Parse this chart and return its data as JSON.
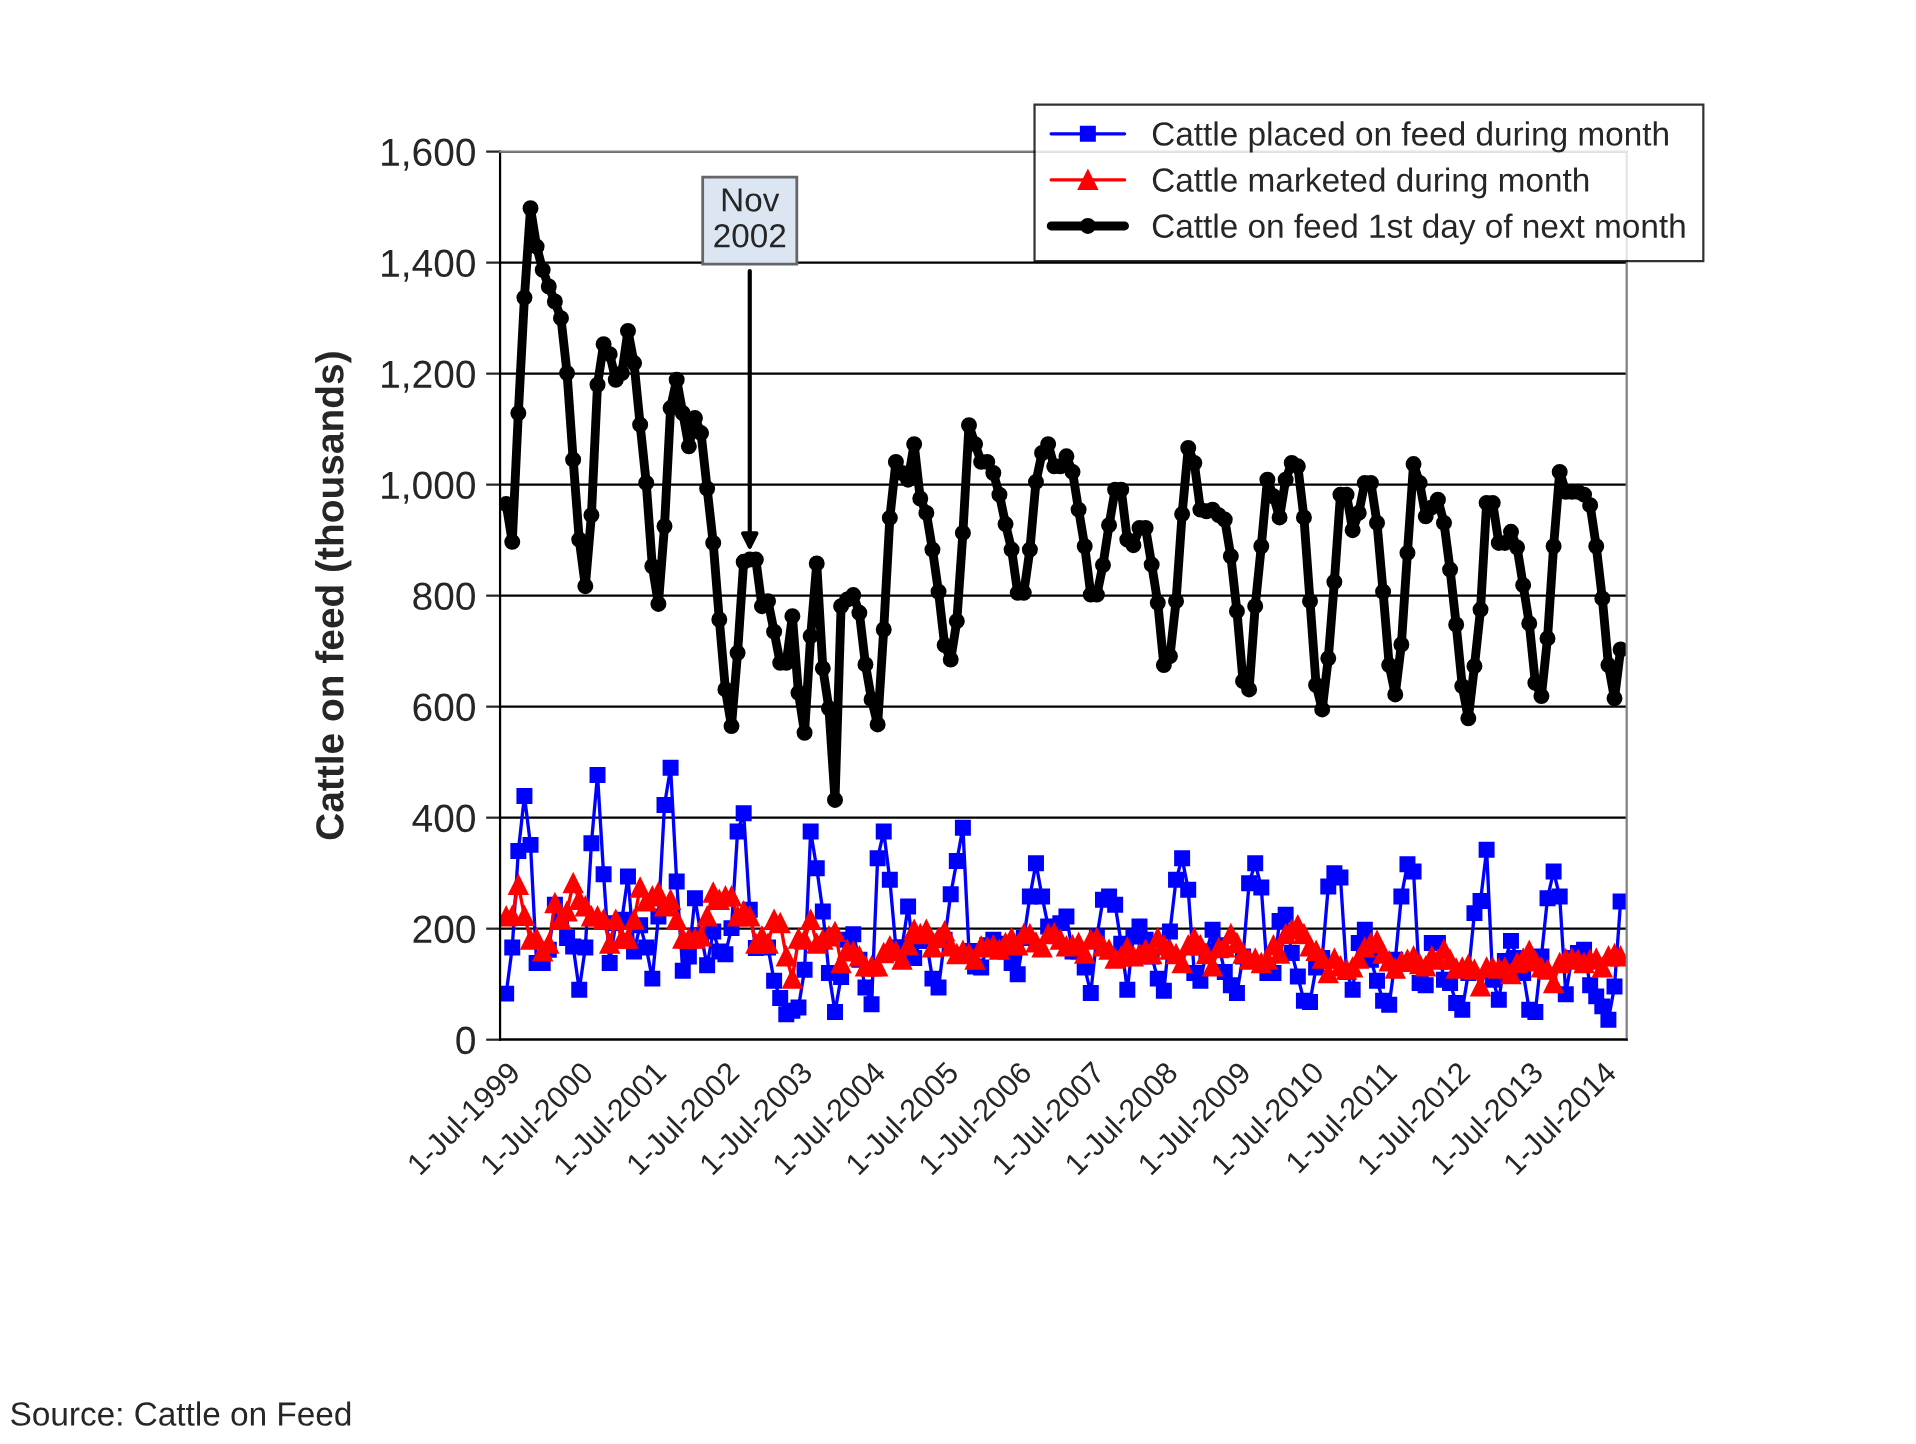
{
  "chart_data": {
    "type": "line",
    "ylabel": "Cattle on feed (thousands)",
    "x": [
      "1999-07",
      "1999-08",
      "1999-09",
      "1999-10",
      "1999-11",
      "1999-12",
      "2000-01",
      "2000-02",
      "2000-03",
      "2000-04",
      "2000-05",
      "2000-06",
      "2000-07",
      "2000-08",
      "2000-09",
      "2000-10",
      "2000-11",
      "2000-12",
      "2001-01",
      "2001-02",
      "2001-03",
      "2001-04",
      "2001-05",
      "2001-06",
      "2001-07",
      "2001-08",
      "2001-09",
      "2001-10",
      "2001-11",
      "2001-12",
      "2002-01",
      "2002-02",
      "2002-03",
      "2002-04",
      "2002-05",
      "2002-06",
      "2002-07",
      "2002-08",
      "2002-09",
      "2002-10",
      "2002-11",
      "2002-12",
      "2003-01",
      "2003-02",
      "2003-03",
      "2003-04",
      "2003-05",
      "2003-06",
      "2003-07",
      "2003-08",
      "2003-09",
      "2003-10",
      "2003-11",
      "2003-12",
      "2004-01",
      "2004-02",
      "2004-03",
      "2004-04",
      "2004-05",
      "2004-06",
      "2004-07",
      "2004-08",
      "2004-09",
      "2004-10",
      "2004-11",
      "2004-12",
      "2005-01",
      "2005-02",
      "2005-03",
      "2005-04",
      "2005-05",
      "2005-06",
      "2005-07",
      "2005-08",
      "2005-09",
      "2005-10",
      "2005-11",
      "2005-12",
      "2006-01",
      "2006-02",
      "2006-03",
      "2006-04",
      "2006-05",
      "2006-06",
      "2006-07",
      "2006-08",
      "2006-09",
      "2006-10",
      "2006-11",
      "2006-12",
      "2007-01",
      "2007-02",
      "2007-03",
      "2007-04",
      "2007-05",
      "2007-06",
      "2007-07",
      "2007-08",
      "2007-09",
      "2007-10",
      "2007-11",
      "2007-12",
      "2008-01",
      "2008-02",
      "2008-03",
      "2008-04",
      "2008-05",
      "2008-06",
      "2008-07",
      "2008-08",
      "2008-09",
      "2008-10",
      "2008-11",
      "2008-12",
      "2009-01",
      "2009-02",
      "2009-03",
      "2009-04",
      "2009-05",
      "2009-06",
      "2009-07",
      "2009-08",
      "2009-09",
      "2009-10",
      "2009-11",
      "2009-12",
      "2010-01",
      "2010-02",
      "2010-03",
      "2010-04",
      "2010-05",
      "2010-06",
      "2010-07",
      "2010-08",
      "2010-09",
      "2010-10",
      "2010-11",
      "2010-12",
      "2011-01",
      "2011-02",
      "2011-03",
      "2011-04",
      "2011-05",
      "2011-06",
      "2011-07",
      "2011-08",
      "2011-09",
      "2011-10",
      "2011-11",
      "2011-12",
      "2012-01",
      "2012-02",
      "2012-03",
      "2012-04",
      "2012-05",
      "2012-06",
      "2012-07",
      "2012-08",
      "2012-09",
      "2012-10",
      "2012-11",
      "2012-12",
      "2013-01",
      "2013-02",
      "2013-03",
      "2013-04",
      "2013-05",
      "2013-06",
      "2013-07",
      "2013-08",
      "2013-09",
      "2013-10",
      "2013-11",
      "2013-12",
      "2014-01",
      "2014-02",
      "2014-03",
      "2014-04",
      "2014-05",
      "2014-06",
      "2014-07",
      "2014-08",
      "2014-09",
      "2014-10"
    ],
    "series": [
      {
        "name": "Cattle placed on feed during month",
        "color": "#0000ff",
        "marker": "square",
        "values": [
          83,
          166,
          340,
          439,
          351,
          138,
          138,
          162,
          243,
          216,
          183,
          168,
          90,
          166,
          354,
          477,
          298,
          138,
          210,
          216,
          294,
          159,
          206,
          166,
          110,
          222,
          423,
          490,
          285,
          124,
          150,
          255,
          188,
          134,
          195,
          159,
          154,
          201,
          375,
          408,
          234,
          165,
          174,
          166,
          106,
          75,
          46,
          52,
          58,
          126,
          375,
          309,
          231,
          120,
          50,
          113,
          180,
          190,
          144,
          94,
          64,
          327,
          375,
          288,
          166,
          166,
          240,
          147,
          178,
          178,
          110,
          94,
          180,
          262,
          322,
          382,
          160,
          132,
          130,
          170,
          180,
          173,
          159,
          138,
          118,
          183,
          258,
          318,
          258,
          204,
          190,
          210,
          222,
          159,
          159,
          130,
          84,
          186,
          252,
          258,
          243,
          173,
          90,
          186,
          204,
          180,
          150,
          110,
          88,
          195,
          288,
          327,
          270,
          120,
          106,
          159,
          198,
          170,
          122,
          98,
          84,
          150,
          282,
          318,
          274,
          120,
          120,
          214,
          225,
          156,
          114,
          70,
          68,
          130,
          147,
          276,
          300,
          292,
          122,
          90,
          174,
          198,
          144,
          106,
          70,
          63,
          144,
          258,
          316,
          303,
          102,
          98,
          174,
          174,
          108,
          102,
          66,
          54,
          120,
          228,
          250,
          342,
          108,
          72,
          142,
          178,
          147,
          120,
          54,
          50,
          150,
          255,
          303,
          258,
          82,
          147,
          156,
          162,
          98,
          78,
          60,
          36,
          96,
          249
        ]
      },
      {
        "name": "Cattle marketed during month",
        "color": "#ff0000",
        "marker": "triangle",
        "values": [
          222,
          223,
          279,
          223,
          180,
          182,
          159,
          173,
          246,
          216,
          231,
          282,
          252,
          240,
          222,
          222,
          216,
          173,
          216,
          182,
          182,
          216,
          274,
          249,
          258,
          265,
          240,
          252,
          216,
          182,
          182,
          182,
          186,
          222,
          265,
          252,
          258,
          258,
          222,
          231,
          222,
          173,
          186,
          173,
          216,
          210,
          150,
          110,
          182,
          180,
          216,
          173,
          180,
          186,
          194,
          138,
          162,
          159,
          150,
          132,
          132,
          132,
          156,
          168,
          159,
          144,
          170,
          198,
          190,
          198,
          166,
          183,
          195,
          168,
          154,
          160,
          155,
          144,
          168,
          166,
          170,
          162,
          174,
          183,
          170,
          190,
          190,
          175,
          166,
          190,
          192,
          180,
          168,
          170,
          174,
          155,
          180,
          183,
          168,
          162,
          146,
          150,
          166,
          150,
          154,
          162,
          154,
          183,
          170,
          162,
          154,
          138,
          170,
          183,
          170,
          154,
          132,
          165,
          166,
          190,
          174,
          155,
          144,
          146,
          138,
          144,
          170,
          155,
          190,
          198,
          206,
          190,
          168,
          160,
          146,
          120,
          146,
          132,
          126,
          130,
          146,
          166,
          174,
          178,
          155,
          141,
          128,
          140,
          144,
          150,
          136,
          132,
          150,
          144,
          162,
          144,
          128,
          130,
          135,
          126,
          96,
          130,
          130,
          128,
          130,
          118,
          138,
          146,
          160,
          141,
          130,
          126,
          102,
          138,
          145,
          146,
          144,
          138,
          144,
          146,
          130,
          150,
          154,
          150
        ]
      },
      {
        "name": "Cattle on feed 1st day of next month",
        "color": "#000000",
        "marker": "circle",
        "values": [
          965,
          897,
          1129,
          1337,
          1498,
          1429,
          1387,
          1357,
          1330,
          1300,
          1201,
          1045,
          901,
          817,
          945,
          1180,
          1253,
          1235,
          1189,
          1201,
          1277,
          1219,
          1108,
          1003,
          853,
          785,
          925,
          1138,
          1189,
          1129,
          1069,
          1120,
          1093,
          993,
          895,
          757,
          631,
          565,
          697,
          861,
          865,
          865,
          781,
          790,
          735,
          679,
          679,
          763,
          625,
          553,
          727,
          858,
          669,
          597,
          432,
          781,
          793,
          801,
          769,
          676,
          613,
          568,
          739,
          940,
          1041,
          1021,
          1009,
          1073,
          975,
          949,
          883,
          807,
          711,
          685,
          754,
          913,
          1107,
          1073,
          1041,
          1041,
          1021,
          982,
          929,
          883,
          805,
          805,
          883,
          1005,
          1057,
          1073,
          1033,
          1033,
          1051,
          1023,
          955,
          889,
          802,
          802,
          855,
          927,
          991,
          991,
          901,
          891,
          922,
          922,
          856,
          787,
          675,
          691,
          790,
          947,
          1066,
          1039,
          955,
          952,
          955,
          945,
          937,
          871,
          772,
          646,
          631,
          781,
          889,
          1009,
          979,
          941,
          1009,
          1039,
          1033,
          941,
          790,
          639,
          595,
          687,
          825,
          982,
          982,
          918,
          949,
          1003,
          1003,
          931,
          807,
          675,
          622,
          712,
          877,
          1037,
          1003,
          943,
          959,
          973,
          931,
          847,
          748,
          637,
          579,
          673,
          775,
          967,
          967,
          895,
          895,
          915,
          887,
          819,
          750,
          643,
          619,
          723,
          889,
          1023,
          987,
          987,
          987,
          982,
          963,
          889,
          795,
          675,
          615,
          703
        ]
      }
    ],
    "xlim": [
      "1999-06",
      "2014-11"
    ],
    "xticks": [
      {
        "value": "1999-07",
        "label": "1-Jul-1999"
      },
      {
        "value": "2000-07",
        "label": "1-Jul-2000"
      },
      {
        "value": "2001-07",
        "label": "1-Jul-2001"
      },
      {
        "value": "2002-07",
        "label": "1-Jul-2002"
      },
      {
        "value": "2003-07",
        "label": "1-Jul-2003"
      },
      {
        "value": "2004-07",
        "label": "1-Jul-2004"
      },
      {
        "value": "2005-07",
        "label": "1-Jul-2005"
      },
      {
        "value": "2006-07",
        "label": "1-Jul-2006"
      },
      {
        "value": "2007-07",
        "label": "1-Jul-2007"
      },
      {
        "value": "2008-07",
        "label": "1-Jul-2008"
      },
      {
        "value": "2009-07",
        "label": "1-Jul-2009"
      },
      {
        "value": "2010-07",
        "label": "1-Jul-2010"
      },
      {
        "value": "2011-07",
        "label": "1-Jul-2011"
      },
      {
        "value": "2012-07",
        "label": "1-Jul-2012"
      },
      {
        "value": "2013-07",
        "label": "1-Jul-2013"
      },
      {
        "value": "2014-07",
        "label": "1-Jul-2014"
      }
    ],
    "ylim": [
      0,
      1600
    ],
    "yticks": [
      0,
      200,
      400,
      600,
      800,
      {
        "value": 1000,
        "label": "1,000"
      },
      {
        "value": 1200,
        "label": "1,200"
      },
      {
        "value": 1400,
        "label": "1,400"
      },
      {
        "value": 1600,
        "label": "1,600"
      }
    ],
    "grid": "y",
    "legend": "top right",
    "line_style": "solid",
    "annotations": [
      {
        "text": "Nov\n2002",
        "x": "2002-11",
        "y": 865
      },
      "Source: Cattle on Feed"
    ]
  }
}
